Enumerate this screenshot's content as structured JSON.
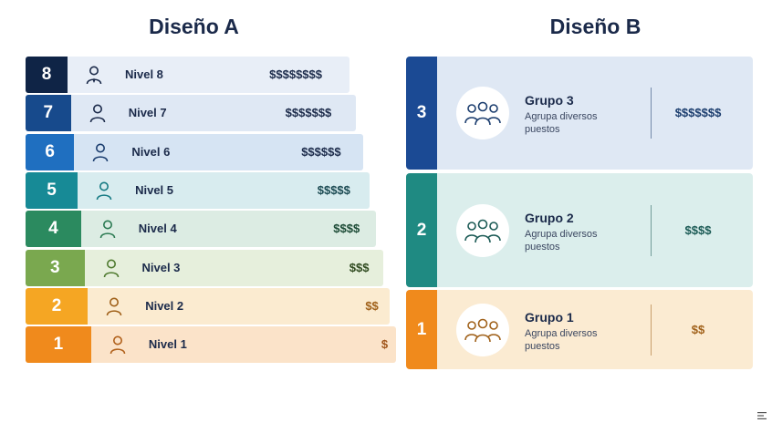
{
  "design_a": {
    "title": "Diseño A",
    "levels": [
      {
        "number": "8",
        "label": "Nivel 8",
        "price": "$$$$$$$$",
        "num_color": "#0f2446",
        "bar_color": "#e8eef7",
        "price_color": "#1b2a4a",
        "icon": "person-tie-icon",
        "icon_color": "#1b2a4a"
      },
      {
        "number": "7",
        "label": "Nivel 7",
        "price": "$$$$$$$",
        "num_color": "#174a8c",
        "bar_color": "#dfe8f4",
        "price_color": "#1b2a4a",
        "icon": "person-icon",
        "icon_color": "#1b2a4a"
      },
      {
        "number": "6",
        "label": "Nivel 6",
        "price": "$$$$$$",
        "num_color": "#1f6fc0",
        "bar_color": "#d6e4f3",
        "price_color": "#1b2a4a",
        "icon": "person-icon",
        "icon_color": "#1b3d6e"
      },
      {
        "number": "5",
        "label": "Nivel 5",
        "price": "$$$$$",
        "num_color": "#178a96",
        "bar_color": "#d8ecef",
        "price_color": "#1b4a52",
        "icon": "person-icon",
        "icon_color": "#157a83"
      },
      {
        "number": "4",
        "label": "Nivel 4",
        "price": "$$$$",
        "num_color": "#2b8a5f",
        "bar_color": "#dcece3",
        "price_color": "#1b4a35",
        "icon": "person-icon",
        "icon_color": "#2b7a52"
      },
      {
        "number": "3",
        "label": "Nivel 3",
        "price": "$$$",
        "num_color": "#7aa84f",
        "bar_color": "#e6efdc",
        "price_color": "#2f4a1f",
        "icon": "person-icon",
        "icon_color": "#4f7a2f"
      },
      {
        "number": "2",
        "label": "Nivel 2",
        "price": "$$",
        "num_color": "#f5a623",
        "bar_color": "#fbebd0",
        "price_color": "#a0611a",
        "icon": "person-icon",
        "icon_color": "#a0611a"
      },
      {
        "number": "1",
        "label": "Nivel 1",
        "price": "$",
        "num_color": "#f08a1c",
        "bar_color": "#fbe3c9",
        "price_color": "#a0551a",
        "icon": "person-icon",
        "icon_color": "#b0601a"
      }
    ]
  },
  "design_b": {
    "title": "Diseño B",
    "groups": [
      {
        "number": "3",
        "title": "Grupo 3",
        "description": "Agrupa diversos puestos",
        "price": "$$$$$$$",
        "num_color": "#1b4a94",
        "bar_color": "#dfe8f4",
        "accent": "#1b3d6e",
        "icon": "group-icon"
      },
      {
        "number": "2",
        "title": "Grupo 2",
        "description": "Agrupa diversos puestos",
        "price": "$$$$",
        "num_color": "#1f8a82",
        "bar_color": "#dbeeec",
        "accent": "#1b5a55",
        "icon": "group-icon"
      },
      {
        "number": "1",
        "title": "Grupo 1",
        "description": "Agrupa diversos puestos",
        "price": "$$",
        "num_color": "#f08a1c",
        "bar_color": "#fbebd2",
        "accent": "#a0611a",
        "icon": "group-icon"
      }
    ]
  }
}
